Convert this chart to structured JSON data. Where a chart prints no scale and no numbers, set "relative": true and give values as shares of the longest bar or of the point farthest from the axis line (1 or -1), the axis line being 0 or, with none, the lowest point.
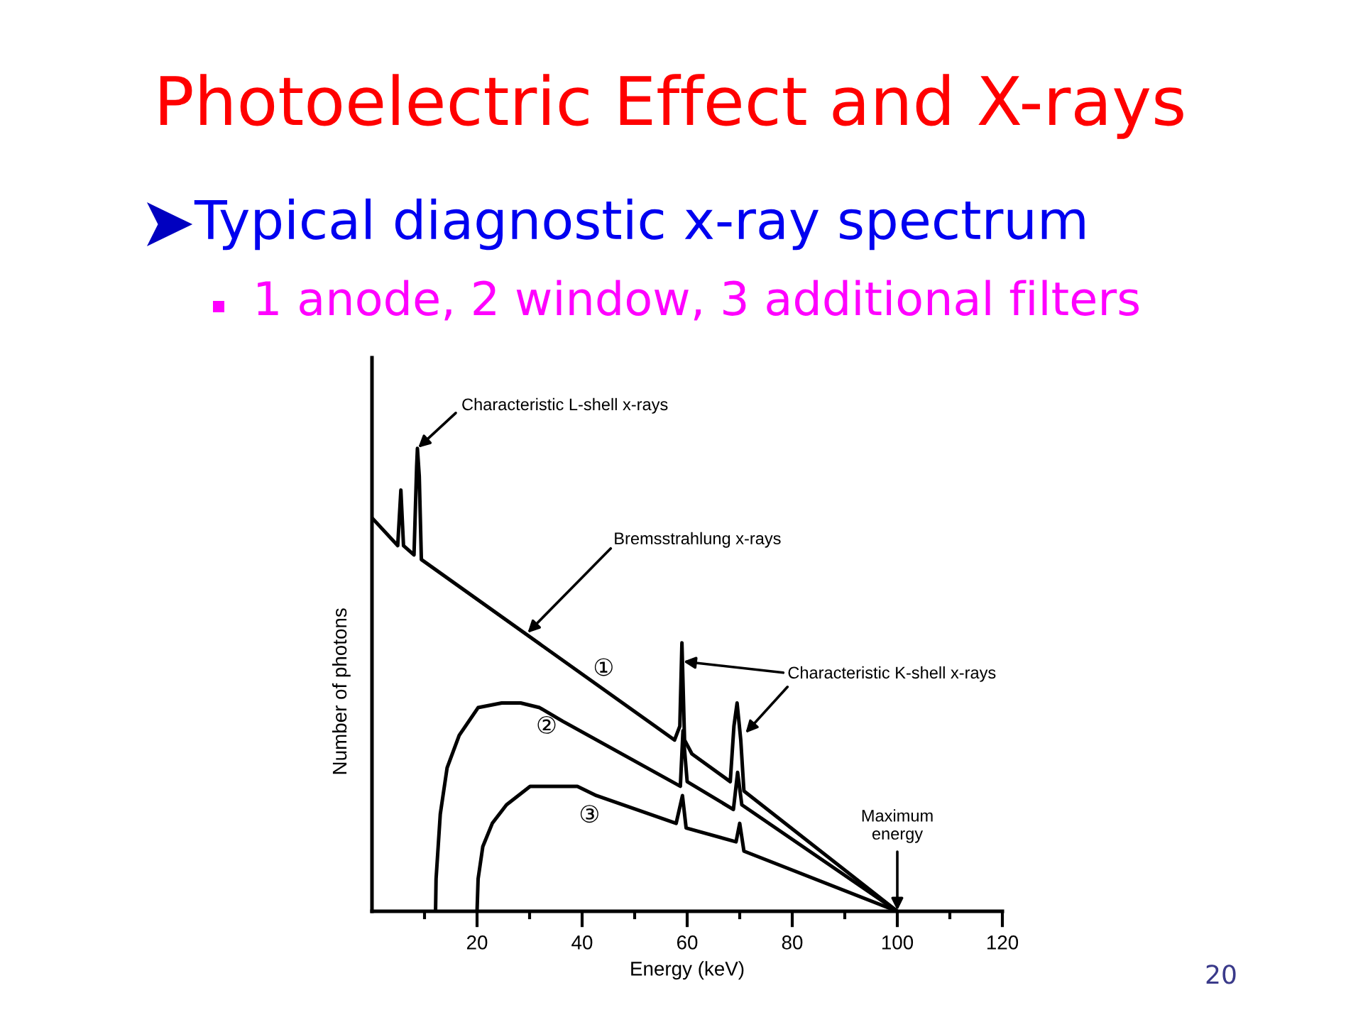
{
  "chart_data": {
    "type": "line",
    "title": "Photoelectric Effect and X-rays",
    "subtitle": "Typical diagnostic x-ray spectrum",
    "xlabel": "Energy (keV)",
    "ylabel": "Number of photons",
    "relative": true,
    "xlim": [
      0,
      120
    ],
    "xticks": [
      {
        "value": 10,
        "label": null
      },
      20,
      {
        "value": 30,
        "label": null
      },
      40,
      {
        "value": 50,
        "label": null
      },
      60,
      {
        "value": 70,
        "label": null
      },
      80,
      {
        "value": 90,
        "label": null
      },
      100,
      {
        "value": 110,
        "label": null
      },
      120
    ],
    "series": [
      {
        "name": "①",
        "color": "#000000",
        "x": [
          0,
          4.9,
          5.5,
          6.0,
          8.0,
          8.5,
          8.65,
          9.0,
          9.4,
          57.6,
          58.6,
          59.0,
          59.5,
          60.9,
          68.2,
          68.9,
          69.5,
          70.2,
          70.8,
          100
        ],
        "values": [
          0.85,
          0.79,
          0.91,
          0.79,
          0.77,
          0.96,
          1,
          0.94,
          0.76,
          0.37,
          0.4,
          0.58,
          0.37,
          0.34,
          0.28,
          0.4,
          0.45,
          0.37,
          0.26,
          0
        ]
      },
      {
        "name": "②",
        "color": "#000000",
        "x": [
          12.1,
          12.2,
          13.0,
          14.3,
          16.6,
          20.2,
          24.7,
          28.3,
          31.9,
          36.4,
          58.7,
          59.2,
          60.0,
          68.8,
          69.6,
          70.4,
          100
        ],
        "values": [
          0,
          0.07,
          0.21,
          0.31,
          0.38,
          0.44,
          0.45,
          0.45,
          0.44,
          0.41,
          0.27,
          0.39,
          0.28,
          0.22,
          0.3,
          0.23,
          0
        ]
      },
      {
        "name": "③",
        "color": "#000000",
        "x": [
          20.0,
          20.2,
          21.1,
          22.9,
          25.6,
          30.1,
          34.6,
          39.1,
          42.7,
          57.9,
          59.1,
          59.8,
          69.3,
          70.0,
          70.8,
          100
        ],
        "values": [
          0,
          0.07,
          0.14,
          0.19,
          0.23,
          0.27,
          0.27,
          0.27,
          0.25,
          0.19,
          0.25,
          0.18,
          0.15,
          0.19,
          0.13,
          0
        ]
      }
    ],
    "annotations": [
      {
        "text": "Characteristic L-shell x-rays",
        "x": 8.65,
        "y": 1.0
      },
      {
        "text": "Bremsstrahlung x-rays",
        "x": 29.5,
        "y": 0.6
      },
      {
        "text": "Characteristic K-shell x-rays",
        "x": 59.1,
        "y": 0.54
      },
      {
        "text": "Maximum\nenergy",
        "x": 100,
        "y": 0
      },
      "1 anode, 2 window, 3 additional filters",
      "20"
    ]
  }
}
